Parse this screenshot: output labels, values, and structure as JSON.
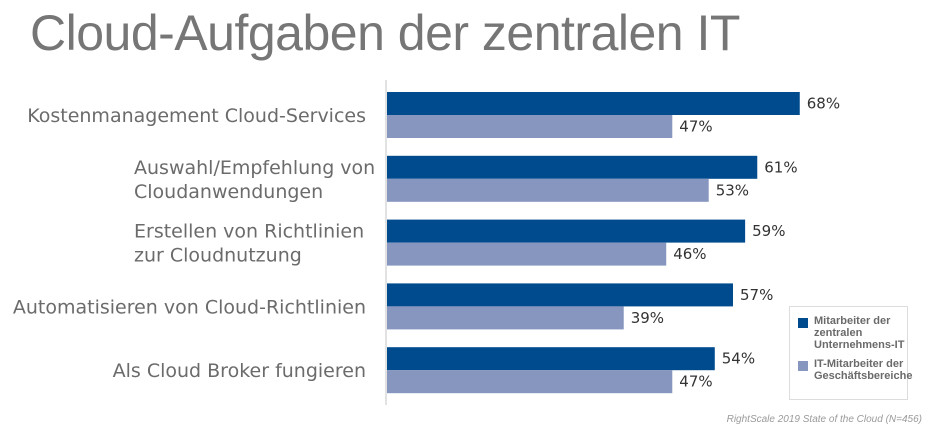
{
  "title": "Cloud-Aufgaben der zentralen IT",
  "source": "RightScale 2019 State of the Cloud (N=456)",
  "colors": {
    "series_1": "#004b8d",
    "series_2": "#8696bf",
    "axis": "#d9d9d9"
  },
  "chart_data": {
    "type": "bar",
    "orientation": "horizontal",
    "title": "Cloud-Aufgaben der zentralen IT",
    "categories": [
      [
        "Kostenmanagement Cloud-Services"
      ],
      [
        "Auswahl/Empfehlung von",
        "Cloudanwendungen"
      ],
      [
        "Erstellen von Richtlinien",
        "zur Cloudnutzung"
      ],
      [
        "Automatisieren von Cloud-Richtlinien"
      ],
      [
        "Als Cloud Broker fungieren"
      ]
    ],
    "series": [
      {
        "name": "Mitarbeiter der zentralen Unternehmens-IT",
        "values": [
          68,
          61,
          59,
          57,
          54
        ]
      },
      {
        "name": "IT-Mitarbeiter der Geschäftsbereiche",
        "values": [
          47,
          53,
          46,
          39,
          47
        ]
      }
    ],
    "value_suffix": "%",
    "xlim": [
      0,
      100
    ],
    "grid": false,
    "legend": "bottom-right",
    "xlabel": "",
    "ylabel": ""
  },
  "legend": {
    "items": [
      {
        "label": "Mitarbeiter der zentralen Unternehmens-IT"
      },
      {
        "label": "IT-Mitarbeiter der Geschäftsbereiche"
      }
    ]
  }
}
